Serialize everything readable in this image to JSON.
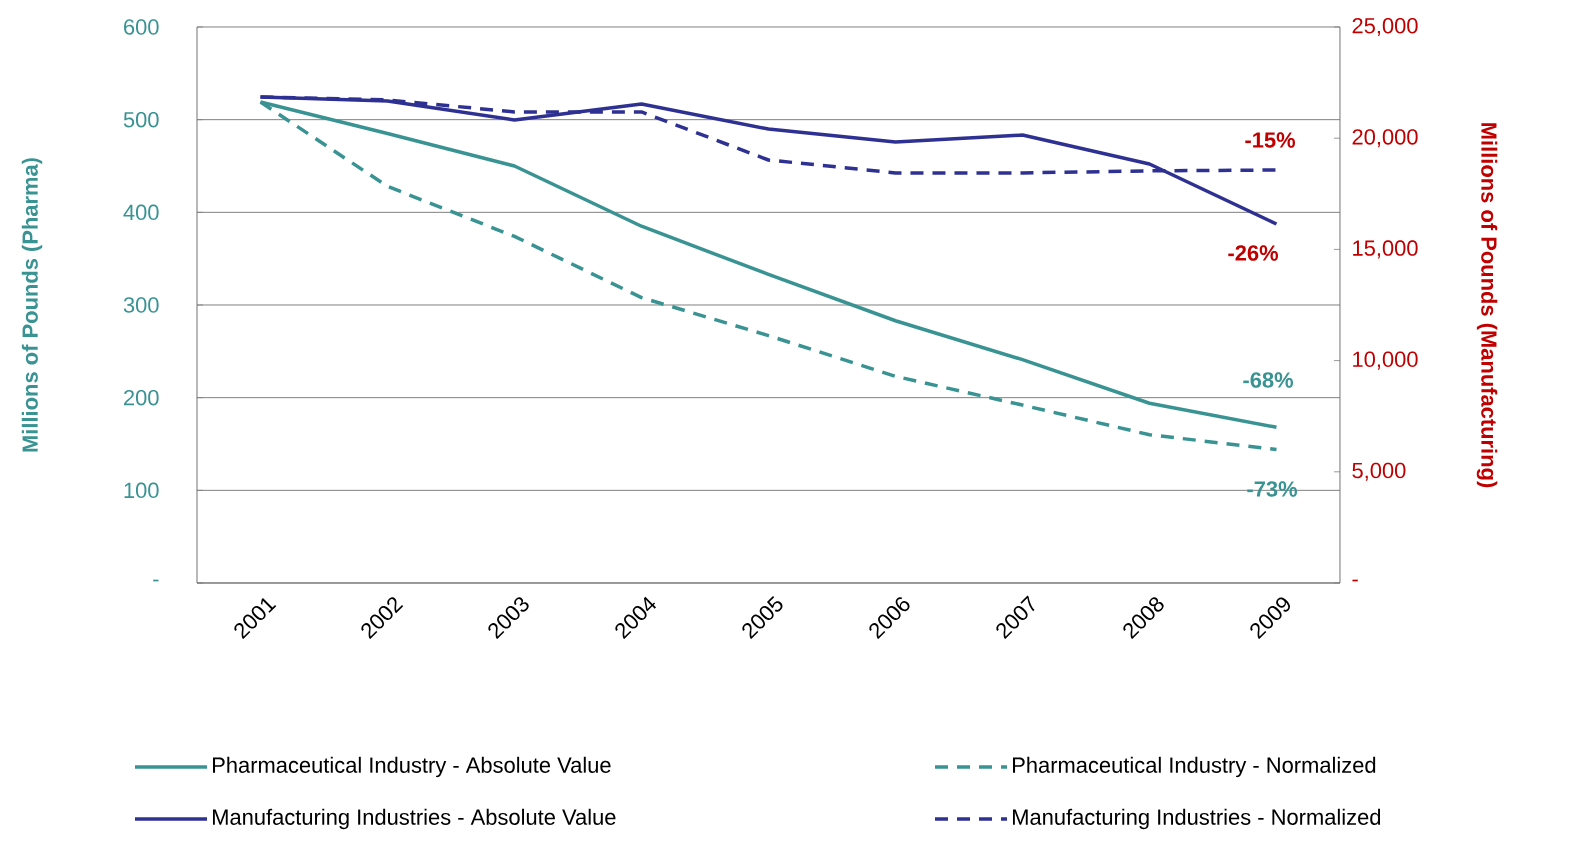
{
  "chart_data": {
    "type": "line",
    "categories": [
      "2001",
      "2002",
      "2003",
      "2004",
      "2005",
      "2006",
      "2007",
      "2008",
      "2009"
    ],
    "ylabel": "Millions of Pounds (Pharma)",
    "y2label": "Millions of Pounds (Manufacturing)",
    "ylim": [
      0,
      600
    ],
    "yticks": [
      {
        "value": 0,
        "label": "-"
      },
      100,
      200,
      300,
      400,
      500,
      600
    ],
    "y2lim": [
      0,
      25000
    ],
    "y2ticks": [
      {
        "value": 0,
        "label": "-"
      },
      {
        "value": 5000,
        "label": "5,000"
      },
      {
        "value": 10000,
        "label": "10,000"
      },
      {
        "value": 15000,
        "label": "15,000"
      },
      {
        "value": 20000,
        "label": "20,000"
      },
      {
        "value": 25000,
        "label": "25,000"
      }
    ],
    "grid": "y",
    "legend": "bottom",
    "series": [
      {
        "name": "Pharmaceutical Industry - Absolute Value",
        "color": "#3a9393",
        "line_style": "solid",
        "values": [
          519,
          485,
          450,
          385,
          333,
          283,
          241,
          194,
          168
        ]
      },
      {
        "name": "Pharmaceutical Industry - Normalized",
        "color": "#3a9393",
        "line_style": "dashed",
        "values": [
          519,
          428,
          374,
          308,
          267,
          223,
          192,
          160,
          144
        ]
      },
      {
        "name": "Manufacturing Industries - Absolute Value",
        "color": "#2e3192",
        "line_style": "solid",
        "axis": "y2",
        "values": [
          21850,
          21670,
          20820,
          21540,
          20410,
          19830,
          20140,
          18840,
          16140
        ]
      },
      {
        "name": "Manufacturing Industries - Normalized",
        "color": "#2e3192",
        "line_style": "dashed",
        "axis": "y2",
        "values": [
          21850,
          21720,
          21180,
          21180,
          19020,
          18440,
          18440,
          18530,
          18570
        ]
      }
    ],
    "annotations": [
      "-15%",
      "-26%",
      "-68%",
      "-73%"
    ]
  }
}
